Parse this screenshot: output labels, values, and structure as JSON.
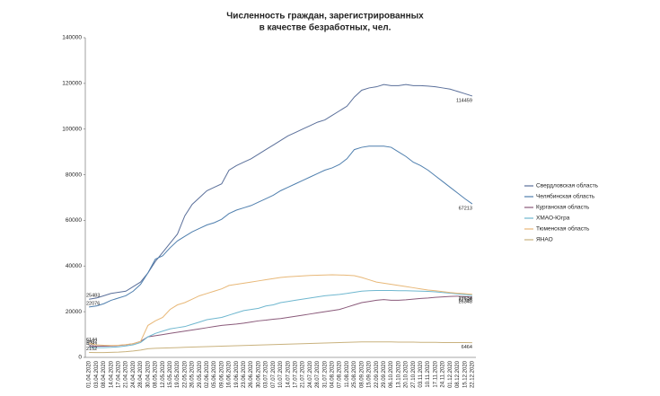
{
  "chart_data": {
    "type": "line",
    "title_lines": [
      "Численность граждан, зарегистрированных",
      "в качестве безработных, чел."
    ],
    "categories": [
      "01.04.2020",
      "03.04.2020",
      "08.04.2020",
      "14.04.2020",
      "17.04.2020",
      "21.04.2020",
      "24.04.2020",
      "28.04.2020",
      "30.04.2020",
      "08.05.2020",
      "12.05.2020",
      "15.05.2020",
      "19.05.2020",
      "22.05.2020",
      "26.05.2020",
      "29.05.2020",
      "02.06.2020",
      "05.06.2020",
      "09.06.2020",
      "16.06.2020",
      "19.06.2020",
      "23.06.2020",
      "26.06.2020",
      "30.06.2020",
      "03.07.2020",
      "07.07.2020",
      "10.07.2020",
      "14.07.2020",
      "17.07.2020",
      "21.07.2020",
      "24.07.2020",
      "28.07.2020",
      "31.07.2020",
      "04.08.2020",
      "07.08.2020",
      "11.08.2020",
      "25.08.2020",
      "08.09.2020",
      "15.09.2020",
      "22.09.2020",
      "29.09.2020",
      "06.10.2020",
      "13.10.2020",
      "20.10.2020",
      "27.10.2020",
      "03.11.2020",
      "10.11.2020",
      "17.11.2020",
      "24.11.2020",
      "01.12.2020",
      "08.12.2020",
      "15.12.2020",
      "22.12.2020"
    ],
    "series": [
      {
        "name": "Свердловская область",
        "color": "#5a6f9a",
        "values": [
          25483,
          26000,
          27000,
          28000,
          28500,
          29000,
          31000,
          33000,
          37000,
          42000,
          46000,
          50000,
          54000,
          62000,
          67000,
          70000,
          73000,
          74500,
          76000,
          82000,
          84000,
          85500,
          87000,
          89000,
          91000,
          93000,
          95000,
          97000,
          98500,
          100000,
          101500,
          103000,
          104000,
          106000,
          108000,
          110000,
          114000,
          117000,
          118000,
          118500,
          119500,
          119000,
          119000,
          119500,
          119000,
          119000,
          118800,
          118500,
          118000,
          117500,
          116500,
          115500,
          114459
        ]
      },
      {
        "name": "Челябинская область",
        "color": "#4f7fae",
        "values": [
          22076,
          22500,
          23500,
          25000,
          26000,
          27000,
          29000,
          32000,
          37000,
          43000,
          44500,
          48000,
          51000,
          53000,
          55000,
          56500,
          58000,
          59000,
          60500,
          63000,
          64500,
          65500,
          66500,
          68000,
          69500,
          71000,
          73000,
          74500,
          76000,
          77500,
          79000,
          80500,
          82000,
          83000,
          84500,
          87000,
          91000,
          92000,
          92500,
          92500,
          92500,
          92000,
          90000,
          88000,
          85500,
          84000,
          82000,
          79500,
          77000,
          74500,
          72000,
          69500,
          67213
        ]
      },
      {
        "name": "Курганская область",
        "color": "#8a5a7a",
        "values": [
          4997,
          4900,
          4900,
          5000,
          5200,
          5500,
          6000,
          7000,
          9000,
          9500,
          10000,
          10500,
          11000,
          11500,
          12000,
          12500,
          13000,
          13500,
          14000,
          14300,
          14600,
          15000,
          15500,
          16000,
          16300,
          16700,
          17000,
          17500,
          18000,
          18500,
          19000,
          19500,
          20000,
          20500,
          21000,
          22000,
          23000,
          24000,
          24500,
          25000,
          25300,
          25000,
          25000,
          25200,
          25500,
          25800,
          26000,
          26300,
          26500,
          26700,
          26800,
          26600,
          26348
        ]
      },
      {
        "name": "ХМАО-Югра",
        "color": "#6fb7cf",
        "values": [
          4393,
          4300,
          4300,
          4400,
          4600,
          5000,
          5500,
          6500,
          9000,
          10500,
          11500,
          12500,
          13000,
          13500,
          14500,
          15500,
          16500,
          17000,
          17500,
          18500,
          19500,
          20500,
          21000,
          21500,
          22500,
          23000,
          24000,
          24500,
          25000,
          25500,
          26000,
          26500,
          27000,
          27300,
          27600,
          28000,
          28500,
          29000,
          29200,
          29300,
          29300,
          29300,
          29200,
          29200,
          29100,
          29000,
          28900,
          28700,
          28400,
          28100,
          27800,
          27500,
          27136
        ]
      },
      {
        "name": "Тюменская область",
        "color": "#e8b878",
        "values": [
          6144,
          5500,
          5300,
          5200,
          5300,
          5600,
          6000,
          7000,
          14000,
          16000,
          17500,
          21000,
          23000,
          24000,
          25500,
          27000,
          28000,
          29000,
          30000,
          31500,
          32000,
          32500,
          33000,
          33500,
          34000,
          34500,
          35000,
          35300,
          35500,
          35700,
          35900,
          36000,
          36100,
          36200,
          36100,
          36000,
          35800,
          35000,
          34000,
          33000,
          32500,
          32000,
          31500,
          31000,
          30500,
          30000,
          29500,
          29200,
          28800,
          28400,
          28100,
          27900,
          27634
        ]
      },
      {
        "name": "ЯНАО",
        "color": "#c9b27e",
        "values": [
          2152,
          2100,
          2100,
          2200,
          2300,
          2500,
          2800,
          3200,
          3800,
          4000,
          4100,
          4200,
          4300,
          4400,
          4500,
          4600,
          4700,
          4800,
          4900,
          5000,
          5100,
          5200,
          5300,
          5400,
          5500,
          5600,
          5700,
          5800,
          5900,
          6000,
          6100,
          6200,
          6300,
          6400,
          6500,
          6600,
          6700,
          6800,
          6800,
          6800,
          6800,
          6800,
          6700,
          6700,
          6700,
          6600,
          6600,
          6600,
          6500,
          6500,
          6500,
          6500,
          6464
        ]
      }
    ],
    "ylim": [
      0,
      140000
    ],
    "yticks": [
      0,
      20000,
      40000,
      60000,
      80000,
      100000,
      120000,
      140000
    ],
    "grid": false
  }
}
